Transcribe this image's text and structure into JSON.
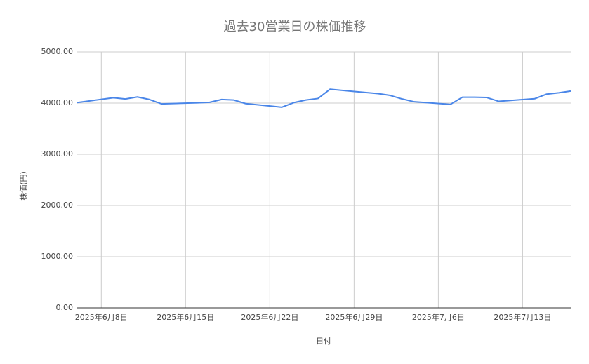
{
  "chart_data": {
    "type": "line",
    "title": "過去30営業日の株価推移",
    "x_label": "日付",
    "y_label": "株価(円)",
    "x": [
      "2025-06-06",
      "2025-06-09",
      "2025-06-10",
      "2025-06-11",
      "2025-06-12",
      "2025-06-13",
      "2025-06-16",
      "2025-06-17",
      "2025-06-18",
      "2025-06-19",
      "2025-06-20",
      "2025-06-23",
      "2025-06-24",
      "2025-06-25",
      "2025-06-26",
      "2025-06-27",
      "2025-06-30",
      "2025-07-01",
      "2025-07-02",
      "2025-07-03",
      "2025-07-04",
      "2025-07-07",
      "2025-07-08",
      "2025-07-09",
      "2025-07-10",
      "2025-07-11",
      "2025-07-14",
      "2025-07-15",
      "2025-07-16",
      "2025-07-17"
    ],
    "series": [
      {
        "name": "株価",
        "color": "#4a86e8",
        "values": [
          4010,
          4105,
          4080,
          4120,
          4070,
          3985,
          4005,
          4015,
          4070,
          4060,
          3990,
          3920,
          4010,
          4060,
          4090,
          4270,
          4205,
          4185,
          4150,
          4080,
          4025,
          3975,
          4115,
          4115,
          4110,
          4035,
          4085,
          4175,
          4200,
          4235
        ]
      }
    ],
    "xlim": [
      "2025-06-06",
      "2025-07-17"
    ],
    "xticks": [
      {
        "value": "2025-06-08",
        "label": "2025年6月8日"
      },
      {
        "value": "2025-06-15",
        "label": "2025年6月15日"
      },
      {
        "value": "2025-06-22",
        "label": "2025年6月22日"
      },
      {
        "value": "2025-06-29",
        "label": "2025年6月29日"
      },
      {
        "value": "2025-07-06",
        "label": "2025年7月6日"
      },
      {
        "value": "2025-07-13",
        "label": "2025年7月13日"
      }
    ],
    "ylim": [
      0,
      5000
    ],
    "yticks": [
      {
        "value": 0,
        "label": "0.00"
      },
      {
        "value": 1000,
        "label": "1000.00"
      },
      {
        "value": 2000,
        "label": "2000.00"
      },
      {
        "value": 3000,
        "label": "3000.00"
      },
      {
        "value": 4000,
        "label": "4000.00"
      },
      {
        "value": 5000,
        "label": "5000.00"
      }
    ],
    "grid": true
  }
}
